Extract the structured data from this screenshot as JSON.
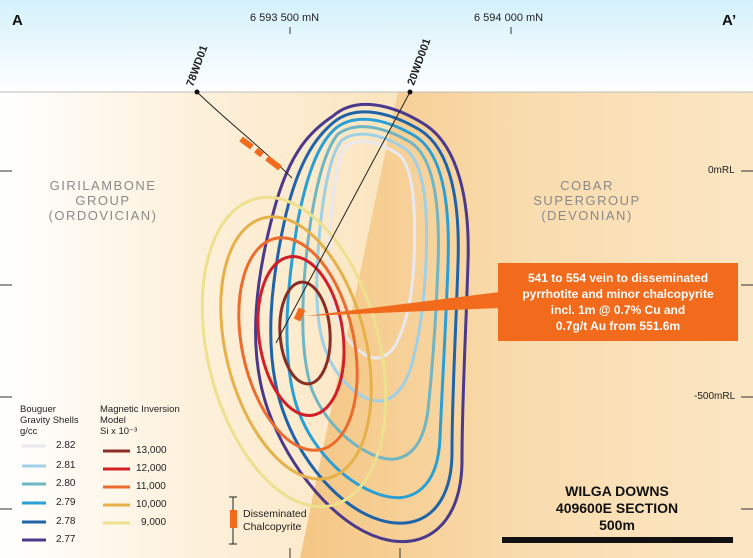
{
  "section_ends": {
    "left": "A",
    "right": "A’"
  },
  "northings": [
    "6 593 500 mN",
    "6 594 000 mN"
  ],
  "rl_labels": [
    "0mRL",
    "-500mRL"
  ],
  "geology": {
    "left_group": [
      "GIRILAMBONE",
      "GROUP",
      "(ORDOVICIAN)"
    ],
    "right_group": [
      "COBAR",
      "SUPERGROUP",
      "(DEVONIAN)"
    ]
  },
  "drillholes": [
    "78WD01",
    "20WD001"
  ],
  "callout": [
    "541 to 554 vein to disseminated",
    "pyrrhotite and minor chalcopyrite",
    "incl. 1m @ 0.7% Cu and",
    "0.7g/t Au from 551.6m"
  ],
  "legend": {
    "gravity_title": [
      "Bouguer",
      "Gravity Shells",
      "g/cc"
    ],
    "gravity_items": [
      {
        "value": "2.82",
        "color": "#e8e8ee"
      },
      {
        "value": "2.81",
        "color": "#9fd0e6"
      },
      {
        "value": "2.80",
        "color": "#6fb5c4"
      },
      {
        "value": "2.79",
        "color": "#2a9fd6"
      },
      {
        "value": "2.78",
        "color": "#1f63a8"
      },
      {
        "value": "2.77",
        "color": "#4b3a8c"
      }
    ],
    "magnetic_title": [
      "Magnetic Inversion",
      "Model",
      "Si x 10⁻³"
    ],
    "magnetic_items": [
      {
        "value": "13,000",
        "color": "#8a2e24"
      },
      {
        "value": "12,000",
        "color": "#d21f26"
      },
      {
        "value": "11,000",
        "color": "#ec6b2d"
      },
      {
        "value": "10,000",
        "color": "#e7b14a"
      },
      {
        "value": "9,000",
        "color": "#ede08e"
      }
    ]
  },
  "mineral_key": [
    "Disseminated",
    "Chalcopyrite"
  ],
  "title_block": {
    "line1": "WILGA DOWNS",
    "line2": "409600E SECTION",
    "scale": "500m"
  },
  "colors": {
    "sky_top": "#cfeef9",
    "ground": "#fbecd0",
    "cobar": "#f6cf94",
    "highlight": "#f26b1d"
  }
}
